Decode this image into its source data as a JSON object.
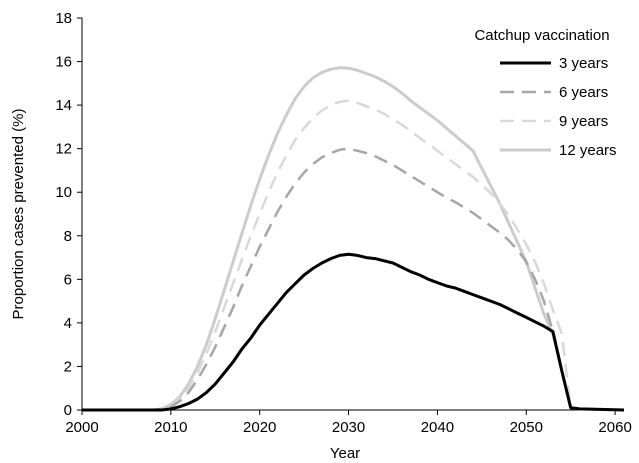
{
  "chart_data": {
    "type": "line",
    "xlabel": "Year",
    "ylabel": "Proportion cases prevented (%)",
    "xlim": [
      2000,
      2061
    ],
    "ylim": [
      0,
      18
    ],
    "x_ticks": [
      2000,
      2010,
      2020,
      2030,
      2040,
      2050,
      2060
    ],
    "y_ticks": [
      0,
      2,
      4,
      6,
      8,
      10,
      12,
      14,
      16,
      18
    ],
    "grid": false,
    "legend": {
      "title": "Catchup vaccination",
      "placement": "top-right"
    },
    "series": [
      {
        "name": "3 years",
        "color": "#000000",
        "style": "solid",
        "x": [
          2000,
          2009,
          2010,
          2011,
          2012,
          2013,
          2014,
          2015,
          2016,
          2017,
          2018,
          2019,
          2020,
          2021,
          2022,
          2023,
          2024,
          2025,
          2026,
          2027,
          2028,
          2029,
          2030,
          2031,
          2032,
          2033,
          2034,
          2035,
          2036,
          2037,
          2038,
          2039,
          2040,
          2041,
          2042,
          2043,
          2044,
          2045,
          2046,
          2047,
          2048,
          2049,
          2050,
          2051,
          2052,
          2053,
          2054,
          2055,
          2056,
          2061
        ],
        "values": [
          0,
          0,
          0.05,
          0.15,
          0.3,
          0.5,
          0.8,
          1.2,
          1.7,
          2.2,
          2.8,
          3.3,
          3.9,
          4.4,
          4.9,
          5.4,
          5.8,
          6.2,
          6.5,
          6.75,
          6.95,
          7.1,
          7.15,
          7.1,
          7.0,
          6.95,
          6.85,
          6.75,
          6.55,
          6.35,
          6.2,
          6.0,
          5.85,
          5.7,
          5.6,
          5.45,
          5.3,
          5.15,
          5.0,
          4.85,
          4.65,
          4.45,
          4.25,
          4.05,
          3.85,
          3.6,
          1.8,
          0.1,
          0.05,
          0
        ]
      },
      {
        "name": "6 years",
        "color": "#a6a6a6",
        "style": "dashed",
        "x": [
          2000,
          2008,
          2009,
          2010,
          2011,
          2012,
          2013,
          2014,
          2015,
          2016,
          2017,
          2018,
          2019,
          2020,
          2021,
          2022,
          2023,
          2024,
          2025,
          2026,
          2027,
          2028,
          2029,
          2030,
          2031,
          2032,
          2033,
          2034,
          2035,
          2036,
          2037,
          2038,
          2039,
          2040,
          2041,
          2042,
          2043,
          2044,
          2045,
          2046,
          2047,
          2048,
          2049,
          2050,
          2051,
          2052,
          2053,
          2054,
          2055,
          2056,
          2061
        ],
        "values": [
          0,
          0,
          0.05,
          0.15,
          0.4,
          0.8,
          1.4,
          2.1,
          2.9,
          3.8,
          4.7,
          5.7,
          6.6,
          7.5,
          8.3,
          9.1,
          9.8,
          10.4,
          10.9,
          11.3,
          11.6,
          11.8,
          11.95,
          12.0,
          11.9,
          11.8,
          11.65,
          11.45,
          11.25,
          11.0,
          10.75,
          10.5,
          10.25,
          10.0,
          9.75,
          9.55,
          9.3,
          9.05,
          8.75,
          8.45,
          8.15,
          7.8,
          7.35,
          6.8,
          6.0,
          5.0,
          3.6,
          1.8,
          0.1,
          0.05,
          0
        ]
      },
      {
        "name": "9 years",
        "color": "#d9d9d9",
        "style": "dashed",
        "x": [
          2000,
          2008,
          2009,
          2010,
          2011,
          2012,
          2013,
          2014,
          2015,
          2016,
          2017,
          2018,
          2019,
          2020,
          2021,
          2022,
          2023,
          2024,
          2025,
          2026,
          2027,
          2028,
          2029,
          2030,
          2031,
          2032,
          2033,
          2034,
          2035,
          2036,
          2037,
          2038,
          2039,
          2040,
          2041,
          2042,
          2043,
          2044,
          2045,
          2046,
          2047,
          2048,
          2049,
          2050,
          2051,
          2052,
          2053,
          2054,
          2055,
          2056,
          2061
        ],
        "values": [
          0,
          0,
          0.05,
          0.2,
          0.5,
          1.0,
          1.7,
          2.6,
          3.6,
          4.7,
          5.8,
          6.9,
          8.0,
          9.0,
          10.0,
          10.9,
          11.7,
          12.4,
          12.95,
          13.4,
          13.75,
          14.0,
          14.15,
          14.2,
          14.1,
          13.95,
          13.8,
          13.6,
          13.35,
          13.1,
          12.8,
          12.5,
          12.2,
          11.9,
          11.6,
          11.3,
          11.0,
          10.7,
          10.35,
          9.95,
          9.5,
          8.95,
          8.3,
          7.6,
          6.8,
          5.8,
          4.6,
          3.5,
          0.1,
          0.05,
          0
        ]
      },
      {
        "name": "12 years",
        "color": "#cccccc",
        "style": "solid",
        "x": [
          2000,
          2008,
          2009,
          2010,
          2011,
          2012,
          2013,
          2014,
          2015,
          2016,
          2017,
          2018,
          2019,
          2020,
          2021,
          2022,
          2023,
          2024,
          2025,
          2026,
          2027,
          2028,
          2029,
          2030,
          2031,
          2032,
          2033,
          2034,
          2035,
          2036,
          2037,
          2038,
          2039,
          2040,
          2041,
          2042,
          2043,
          2044,
          2045,
          2046,
          2047,
          2048,
          2049,
          2050,
          2051,
          2052,
          2053,
          2054,
          2055,
          2056,
          2061
        ],
        "values": [
          0,
          0,
          0.05,
          0.25,
          0.6,
          1.2,
          2.0,
          3.0,
          4.2,
          5.5,
          6.8,
          8.1,
          9.4,
          10.6,
          11.7,
          12.7,
          13.55,
          14.3,
          14.85,
          15.25,
          15.5,
          15.65,
          15.72,
          15.7,
          15.6,
          15.45,
          15.3,
          15.1,
          14.85,
          14.55,
          14.2,
          13.9,
          13.6,
          13.3,
          12.95,
          12.6,
          12.25,
          11.9,
          11.1,
          10.3,
          9.5,
          8.6,
          7.7,
          6.8,
          5.6,
          4.4,
          3.5,
          1.8,
          0.1,
          0.05,
          0
        ]
      }
    ]
  }
}
